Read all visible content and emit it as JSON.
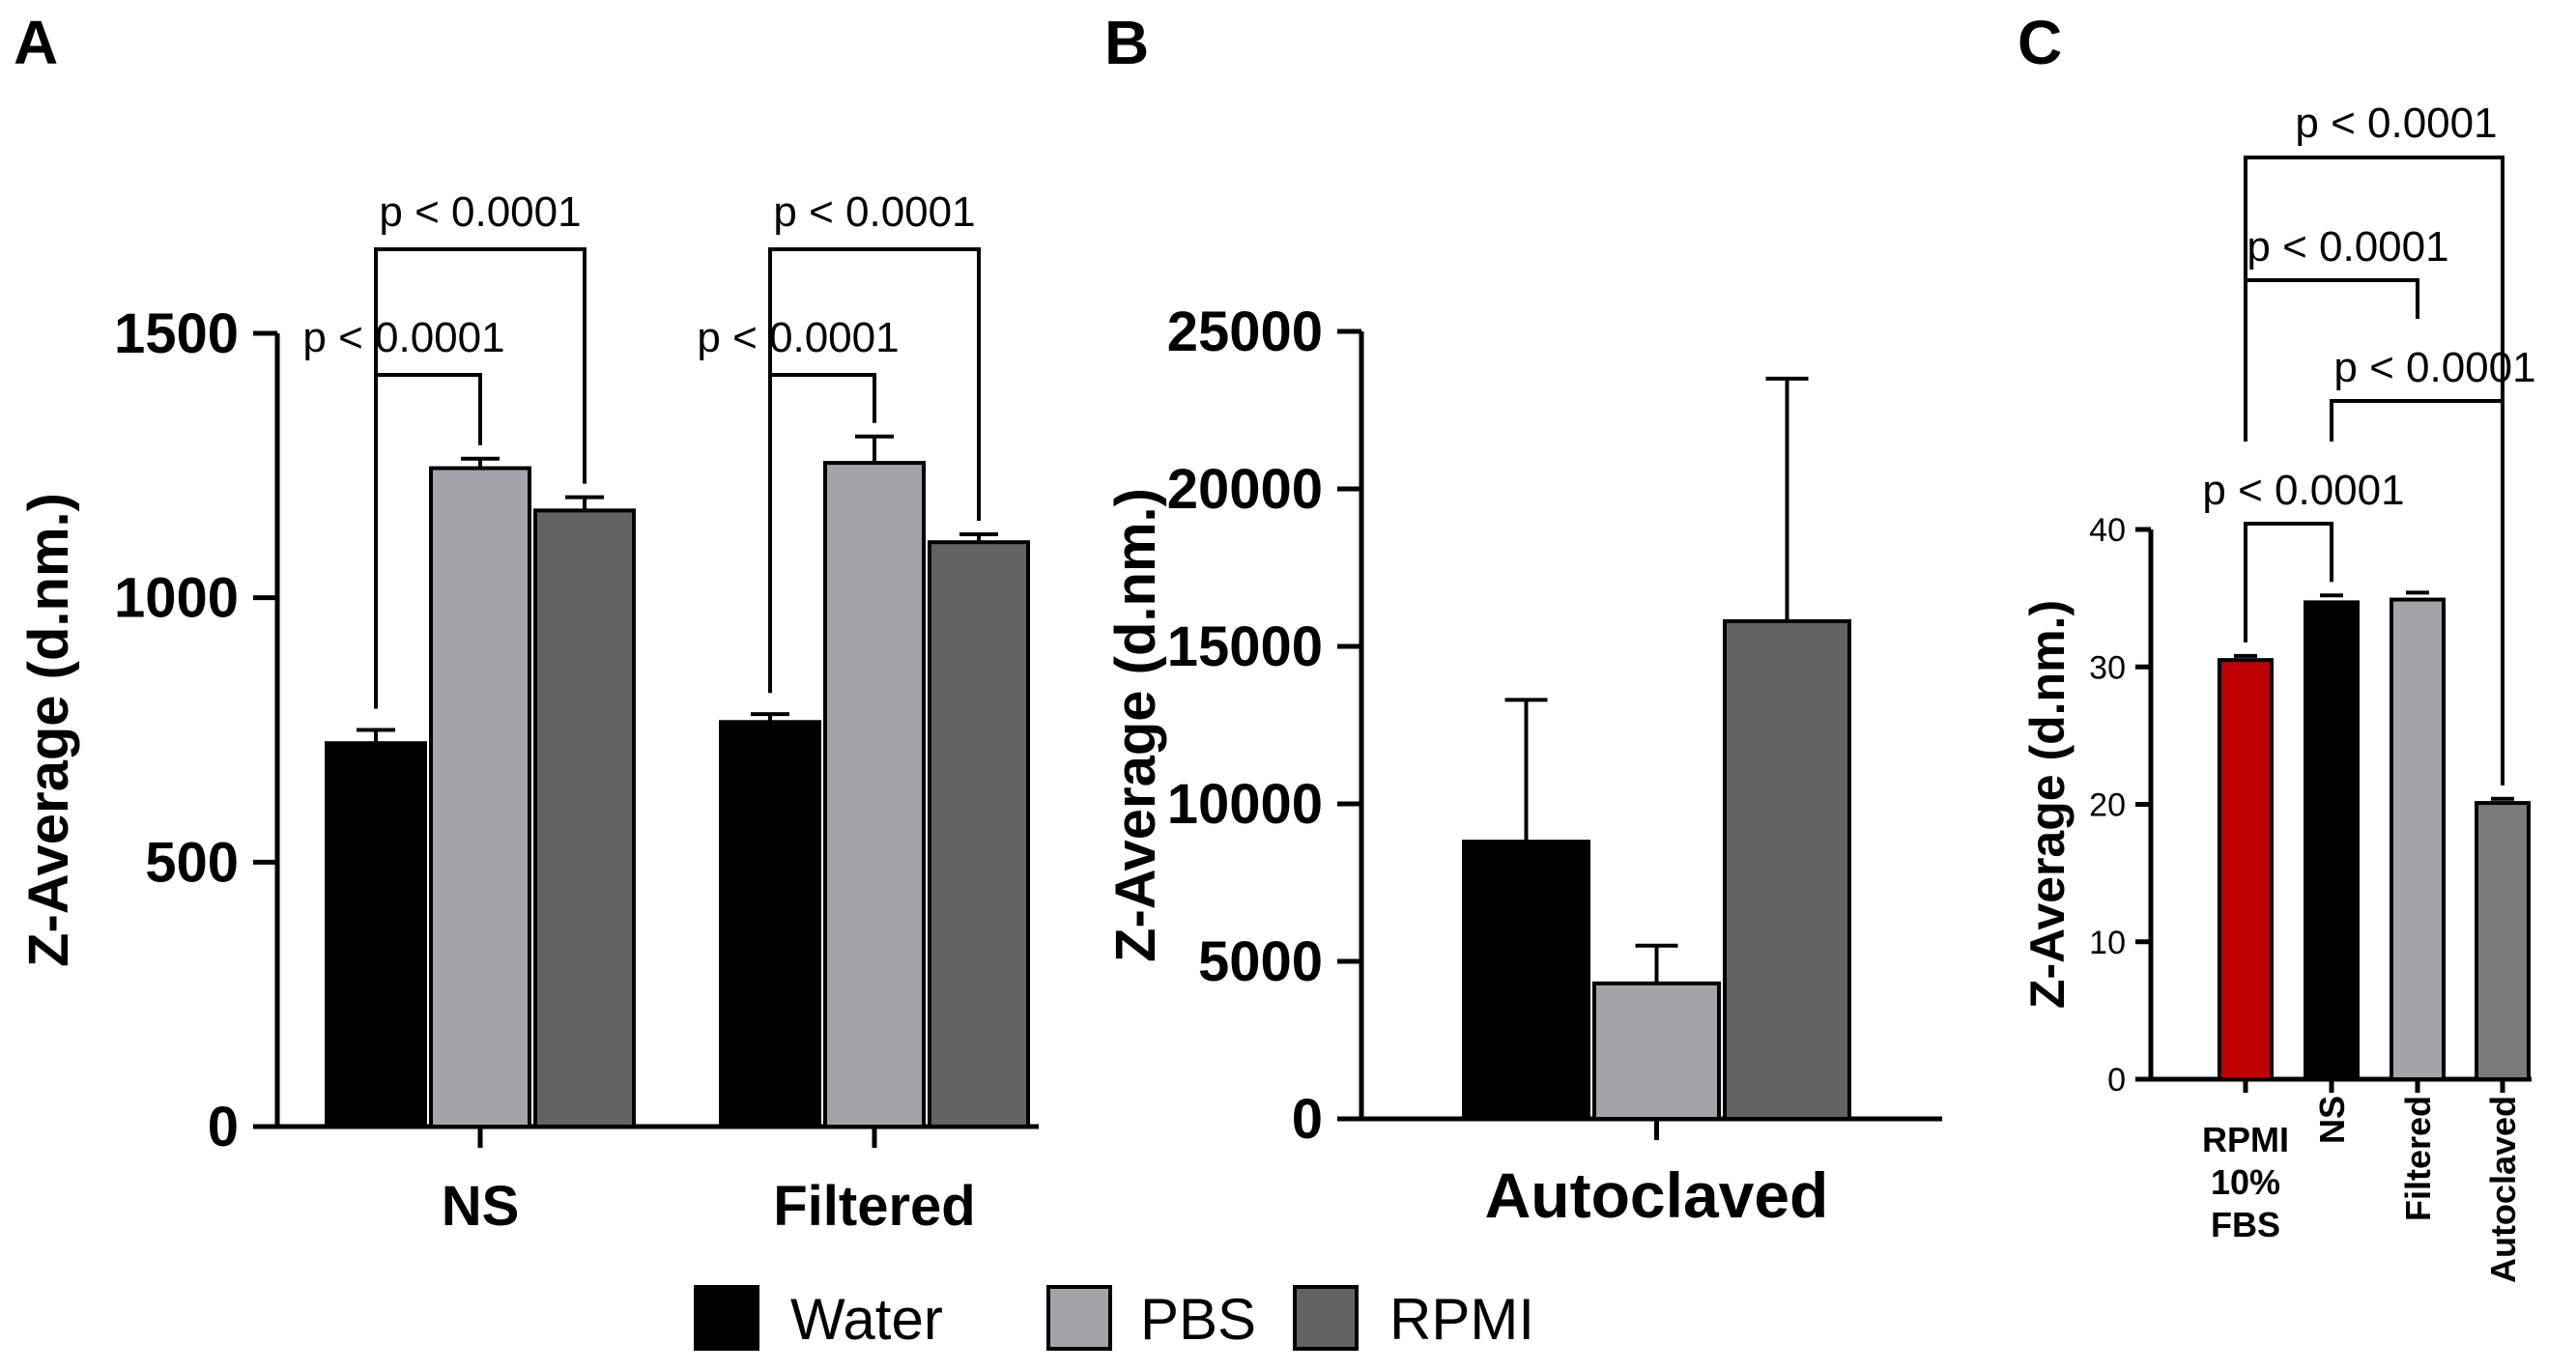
{
  "legend": [
    {
      "label": "Water",
      "color": "#000000"
    },
    {
      "label": "PBS",
      "color": "#A4A4A8"
    },
    {
      "label": "RPMI",
      "color": "#636363"
    }
  ],
  "chart_data": [
    {
      "panel": "A",
      "type": "bar",
      "ylabel": "Z-Average (d.nm.)",
      "ylim": [
        0,
        1500
      ],
      "yticks": [
        0,
        500,
        1000,
        1500
      ],
      "ytick_labels": [
        "0",
        "500",
        "1000",
        "1500"
      ],
      "categories": [
        "NS",
        "Filtered"
      ],
      "series": [
        {
          "name": "Water",
          "values": [
            725,
            765
          ],
          "errors": [
            25,
            15
          ]
        },
        {
          "name": "PBS",
          "values": [
            1245,
            1255
          ],
          "errors": [
            18,
            50
          ]
        },
        {
          "name": "RPMI",
          "values": [
            1165,
            1105
          ],
          "errors": [
            25,
            15
          ]
        }
      ],
      "significance": [
        {
          "group": 0,
          "from": "Water",
          "to": "PBS",
          "text": "p < 0.0001"
        },
        {
          "group": 0,
          "from": "Water",
          "to": "RPMI",
          "text": "p < 0.0001"
        },
        {
          "group": 1,
          "from": "Water",
          "to": "PBS",
          "text": "p < 0.0001"
        },
        {
          "group": 1,
          "from": "Water",
          "to": "RPMI",
          "text": "p < 0.0001"
        }
      ]
    },
    {
      "panel": "B",
      "type": "bar",
      "ylabel": "Z-Average (d.nm.)",
      "ylim": [
        0,
        25000
      ],
      "yticks": [
        0,
        5000,
        10000,
        15000,
        20000,
        25000
      ],
      "ytick_labels": [
        "0",
        "5000",
        "10000",
        "15000",
        "20000",
        "25000"
      ],
      "categories": [
        "Autoclaved"
      ],
      "series": [
        {
          "name": "Water",
          "values": [
            8800
          ],
          "errors": [
            4500
          ]
        },
        {
          "name": "PBS",
          "values": [
            4300
          ],
          "errors": [
            1200
          ]
        },
        {
          "name": "RPMI",
          "values": [
            15800
          ],
          "errors": [
            7700
          ]
        }
      ]
    },
    {
      "panel": "C",
      "type": "bar",
      "ylabel": "Z-Average (d.nm.)",
      "ylim": [
        0,
        40
      ],
      "yticks": [
        0,
        10,
        20,
        30,
        40
      ],
      "ytick_labels": [
        "0",
        "10",
        "20",
        "30",
        "40"
      ],
      "categories": [
        "RPMI\n10%\nFBS",
        "NS",
        "Filtered",
        "Autoclaved"
      ],
      "values": [
        30.5,
        34.7,
        34.9,
        20.1
      ],
      "errors": [
        0.3,
        0.5,
        0.5,
        0.3
      ],
      "colors": [
        "#BF0000",
        "#000000",
        "#A4A4A8",
        "#7A7A7A"
      ],
      "significance": [
        {
          "from": 0,
          "to": 3,
          "text": "p < 0.0001"
        },
        {
          "from": 0,
          "to": 2,
          "text": "p < 0.0001"
        },
        {
          "from": 1,
          "to": 3,
          "text": "p < 0.0001"
        },
        {
          "from": 0,
          "to": 1,
          "text": "p < 0.0001"
        }
      ]
    }
  ]
}
